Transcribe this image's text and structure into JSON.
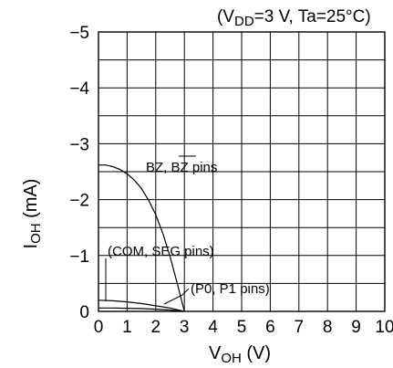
{
  "chart_data": {
    "type": "line",
    "condition": {
      "prefix": "(V",
      "sub": "DD",
      "suffix": "=3 V, Ta=25°C)"
    },
    "xlabel": {
      "main": "V",
      "sub": "OH",
      "unit": " (V)"
    },
    "ylabel": {
      "main": "I",
      "sub": "OH",
      "unit": " (mA)"
    },
    "xlim": [
      0,
      10
    ],
    "ylim": [
      0,
      -5
    ],
    "grid": true,
    "xticks": [
      "0",
      "1",
      "2",
      "3",
      "4",
      "5",
      "6",
      "7",
      "8",
      "9",
      "10"
    ],
    "yticks": [
      "0",
      "−1",
      "−2",
      "−3",
      "−4",
      "−5"
    ],
    "series": [
      {
        "name": "BZ, BZ pins",
        "x": [
          0,
          0.25,
          0.5,
          0.75,
          1.0,
          1.25,
          1.5,
          1.75,
          2.0,
          2.25,
          2.5,
          2.75,
          3.0
        ],
        "y": [
          -2.62,
          -2.62,
          -2.59,
          -2.54,
          -2.46,
          -2.35,
          -2.2,
          -1.99,
          -1.73,
          -1.39,
          -0.98,
          -0.5,
          0
        ]
      },
      {
        "name": "COM, SEG pins",
        "x": [
          0,
          0.5,
          1.0,
          1.5,
          2.0,
          2.5,
          3.0
        ],
        "y": [
          -0.2,
          -0.19,
          -0.17,
          -0.14,
          -0.1,
          -0.06,
          0
        ]
      },
      {
        "name": "P0, P1 pins",
        "x": [
          0,
          0.5,
          1.0,
          1.5,
          2.0,
          2.5,
          3.0
        ],
        "y": [
          -0.06,
          -0.06,
          -0.055,
          -0.05,
          -0.04,
          -0.025,
          0
        ]
      }
    ],
    "annotations": {
      "bz": {
        "text_a": "BZ, ",
        "text_b": "BZ",
        "text_c": " pins"
      },
      "com": {
        "text": "(COM, SEG pins)"
      },
      "p0": {
        "text": "(P0, P1 pins)"
      }
    }
  }
}
